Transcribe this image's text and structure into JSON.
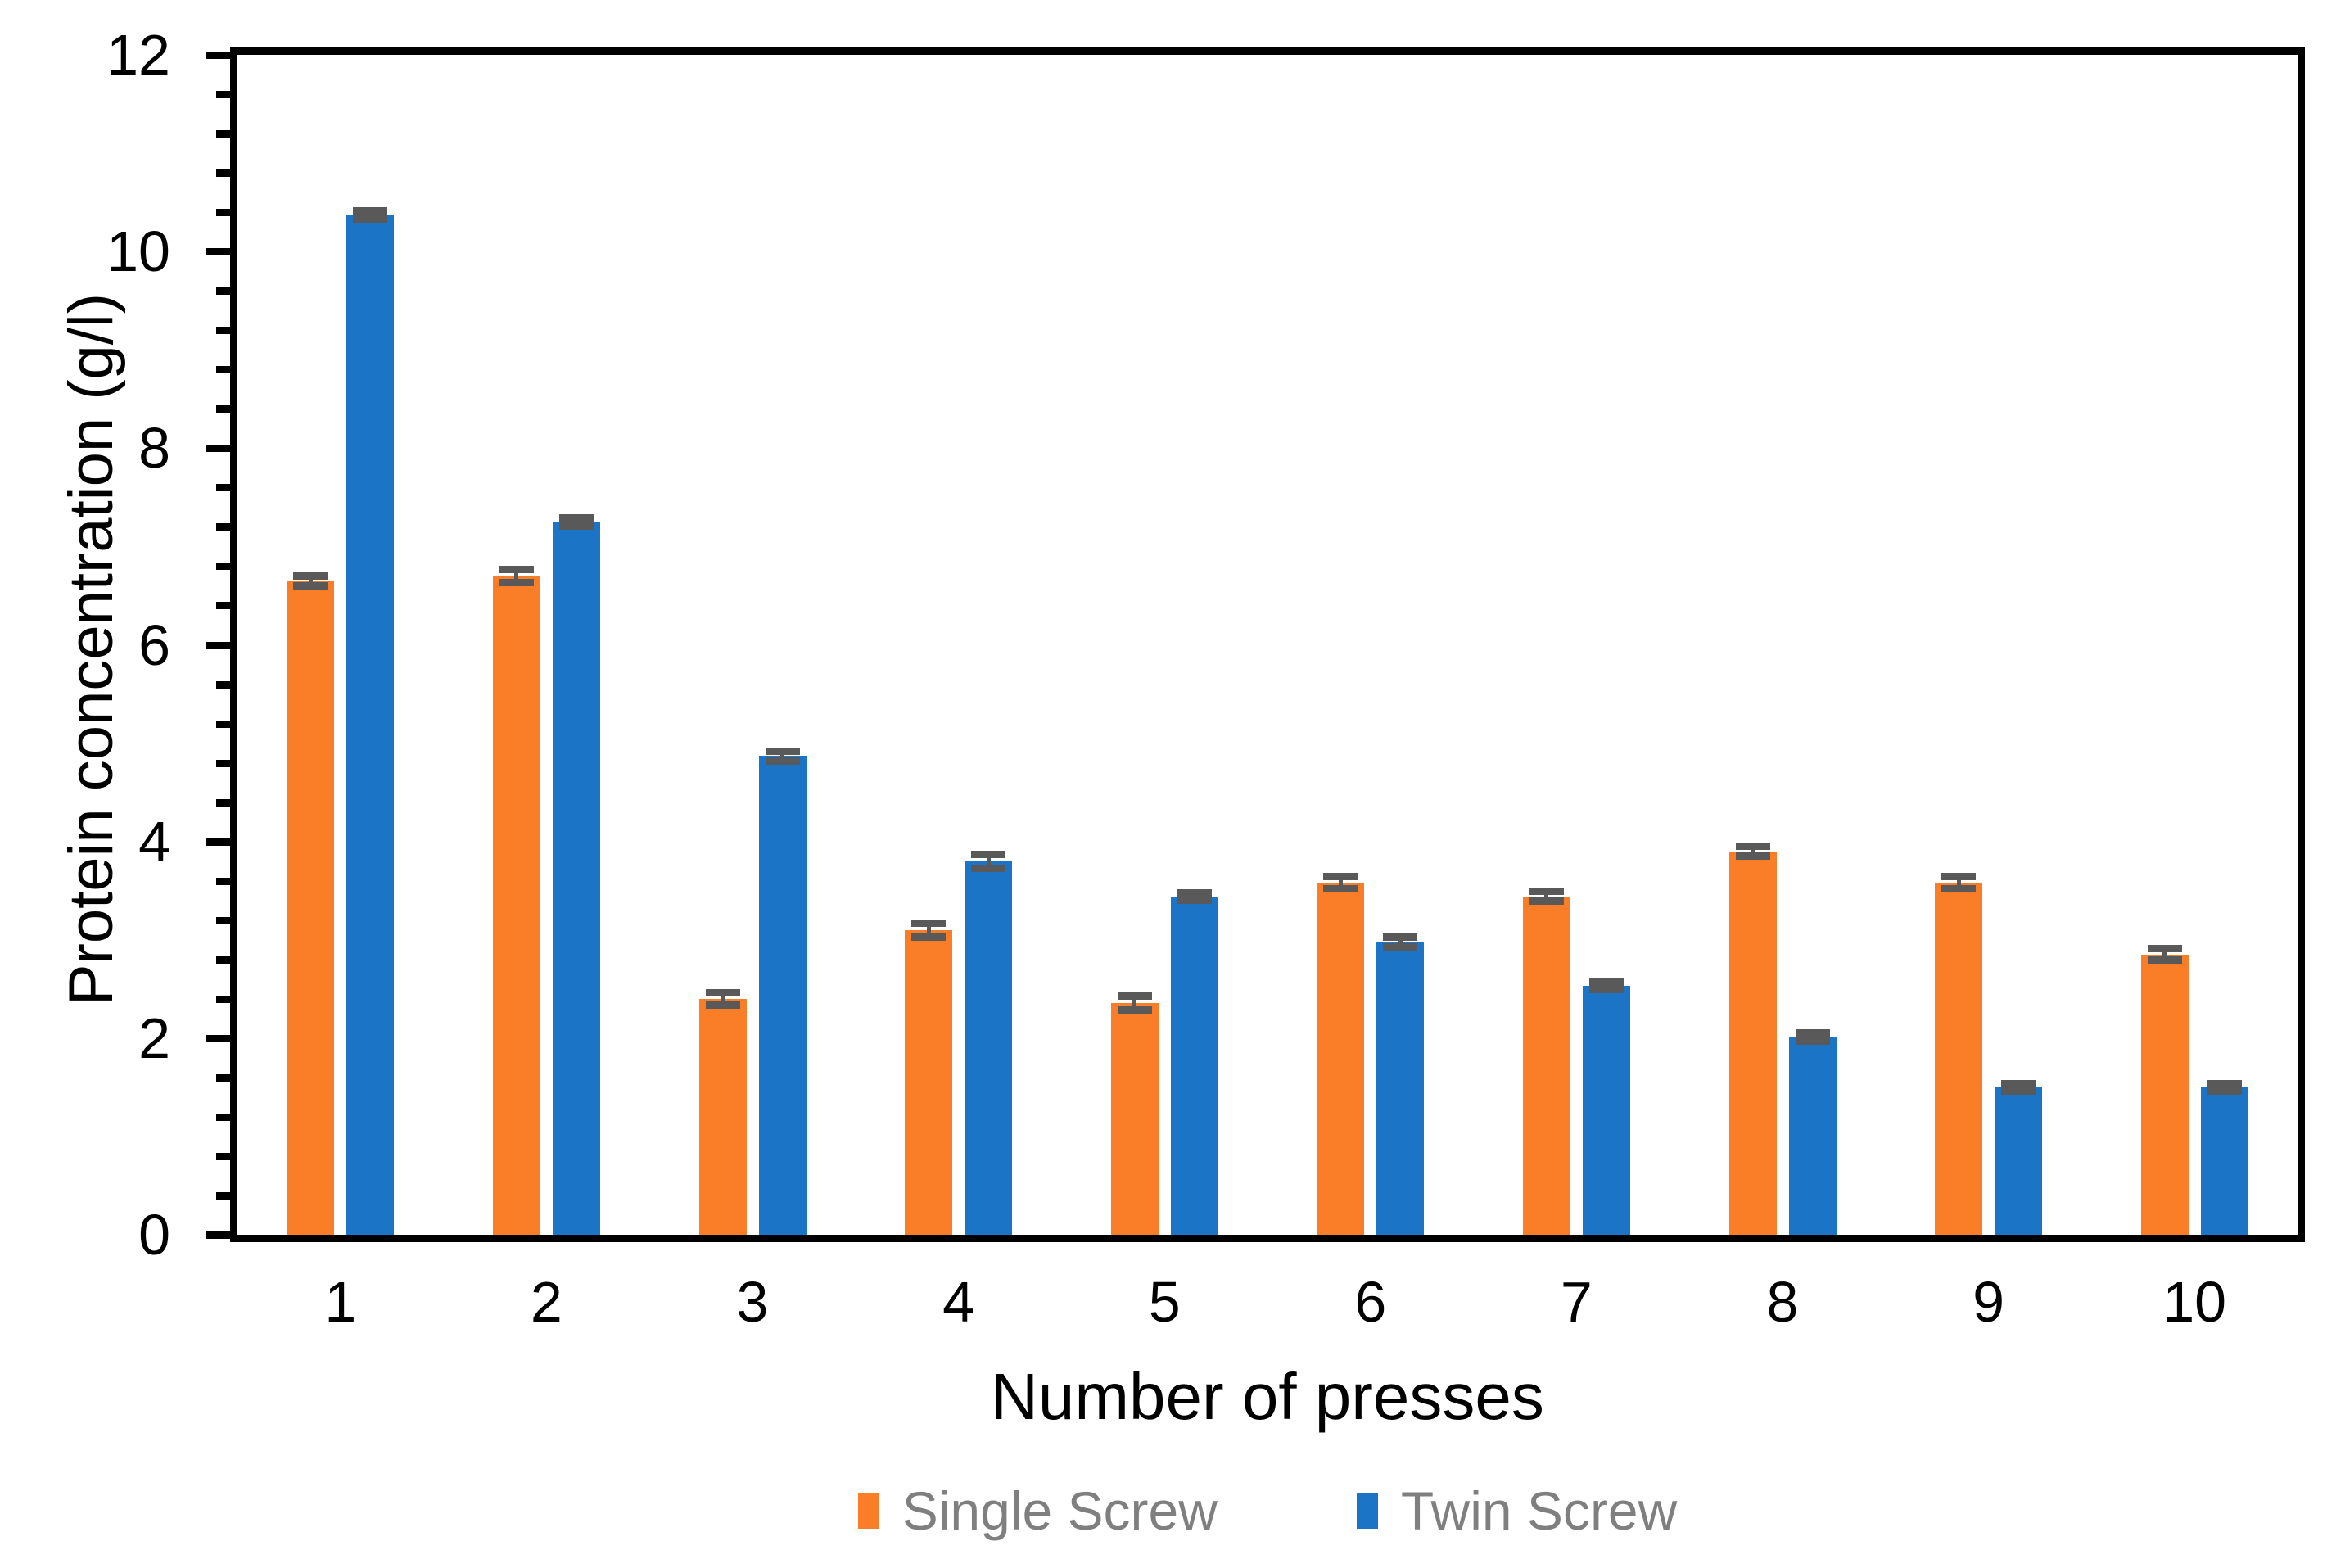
{
  "chart_data": {
    "type": "bar",
    "title": "",
    "xlabel": "Number of presses",
    "ylabel": "Protein concentration (g/l)",
    "categories": [
      "1",
      "2",
      "3",
      "4",
      "5",
      "6",
      "7",
      "8",
      "9",
      "10"
    ],
    "series": [
      {
        "name": "Single Screw",
        "color": "#FA7E28",
        "values": [
          6.65,
          6.7,
          2.4,
          3.1,
          2.36,
          3.58,
          3.44,
          3.9,
          3.58,
          2.85
        ],
        "errors": [
          0.05,
          0.07,
          0.06,
          0.07,
          0.07,
          0.06,
          0.05,
          0.05,
          0.06,
          0.06
        ]
      },
      {
        "name": "Twin Screw",
        "color": "#1B74C5",
        "values": [
          10.37,
          7.25,
          4.87,
          3.8,
          3.44,
          2.98,
          2.53,
          2.01,
          1.5,
          1.5
        ],
        "errors": [
          0.04,
          0.04,
          0.05,
          0.07,
          0.04,
          0.05,
          0.04,
          0.04,
          0.04,
          0.04
        ]
      }
    ],
    "ylim": [
      0,
      12
    ],
    "y_major_step": 2,
    "y_minor_step": 0.4,
    "y_major_tick_labels": [
      "0",
      "2",
      "4",
      "6",
      "8",
      "10",
      "12"
    ],
    "grid": false,
    "legend_position": "bottom",
    "error_bar_color": "#595959",
    "axis_color": "#000000",
    "tick_label_color": "#000000",
    "legend_text_color": "#7F7F7F",
    "plot_background": "#ffffff"
  }
}
